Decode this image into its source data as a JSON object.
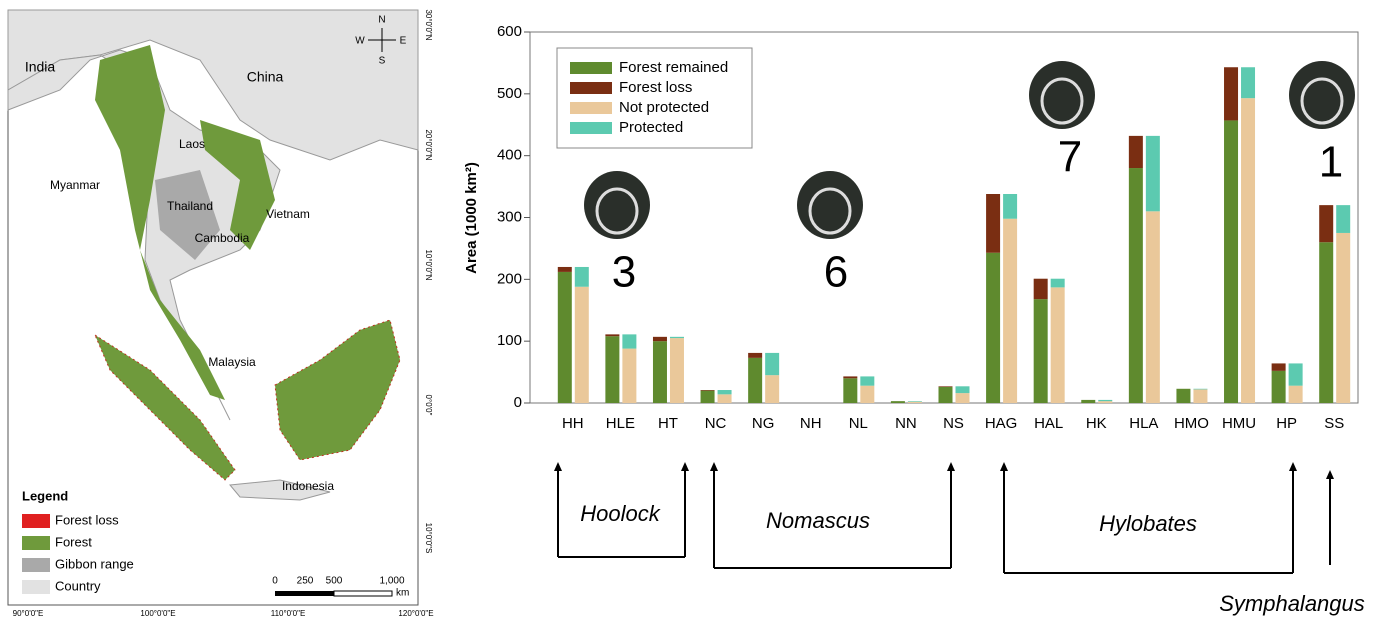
{
  "chart_data": {
    "type": "bar",
    "ylabel": "Area (1000 km²)",
    "categories": [
      "HH",
      "HLE",
      "HT",
      "NC",
      "NG",
      "NH",
      "NL",
      "NN",
      "NS",
      "HAG",
      "HAL",
      "HK",
      "HLA",
      "HMO",
      "HMU",
      "HP",
      "SS"
    ],
    "series": [
      {
        "name": "Forest remained",
        "color": "#5f8a2e",
        "stack": 0,
        "values": [
          212,
          108,
          100,
          20,
          73,
          0,
          40,
          3,
          26,
          243,
          168,
          5,
          380,
          23,
          457,
          52,
          260
        ]
      },
      {
        "name": "Forest loss",
        "color": "#7a2e12",
        "stack": 0,
        "values": [
          8,
          3,
          7,
          1,
          8,
          0,
          3,
          0,
          1,
          95,
          33,
          0,
          52,
          0,
          86,
          12,
          60
        ]
      },
      {
        "name": "Not protected",
        "color": "#eac89a",
        "stack": 1,
        "values": [
          188,
          88,
          105,
          14,
          45,
          0,
          28,
          2,
          16,
          298,
          187,
          3,
          310,
          22,
          493,
          28,
          275
        ]
      },
      {
        "name": "Protected",
        "color": "#5ccab0",
        "stack": 1,
        "values": [
          32,
          23,
          2,
          7,
          36,
          0,
          15,
          1,
          11,
          40,
          14,
          2,
          122,
          1,
          50,
          36,
          45
        ]
      }
    ],
    "ylim": [
      0,
      600
    ],
    "yticks": [
      0,
      100,
      200,
      300,
      400,
      500,
      600
    ],
    "legend": "upper left",
    "annotations": [
      "3",
      "6",
      "7",
      "1"
    ],
    "groups": [
      "Hoolock",
      "Nomascus",
      "Hylobates",
      "Symphalangus"
    ]
  },
  "map": {
    "places": [
      "India",
      "China",
      "Laos",
      "Myanmar",
      "Thailand",
      "Vietnam",
      "Cambodia",
      "Malaysia",
      "Indonesia"
    ],
    "compass": [
      "N",
      "E",
      "S",
      "W"
    ],
    "legend_title": "Legend",
    "legend_items": [
      {
        "label": "Forest loss",
        "color": "#e02020"
      },
      {
        "label": "Forest",
        "color": "#6f9a3c"
      },
      {
        "label": "Gibbon range",
        "color": "#a9a9a9"
      },
      {
        "label": "Country",
        "color": "#e2e2e2"
      }
    ],
    "scale": [
      "0",
      "250",
      "500",
      "1,000",
      "km"
    ],
    "lon_labels": [
      "90°0'0\"E",
      "100°0'0\"E",
      "110°0'0\"E",
      "120°0'0\"E"
    ],
    "lat_labels": [
      "30°0'0\"N",
      "20°0'0\"N",
      "10°0'0\"N",
      "0°0'0\"",
      "10°0'0\"S"
    ]
  }
}
